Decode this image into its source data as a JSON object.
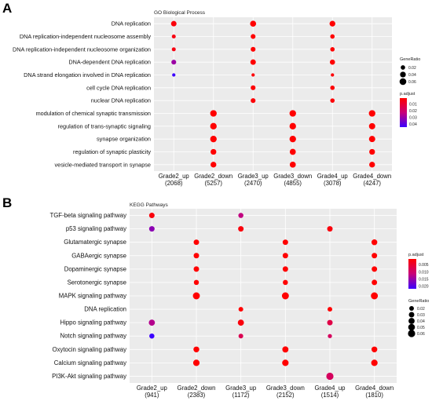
{
  "colors": {
    "high": "#ff0000",
    "low": "#3b00ff",
    "panel": "#ebebeb",
    "grid": "#ffffff"
  },
  "chart_data": [
    {
      "panel_label": "A",
      "type": "scatter",
      "title": "GO Biological Process",
      "categories": [
        "Grade2_up",
        "Grade2_down",
        "Grade3_up",
        "Grade3_down",
        "Grade4_up",
        "Grade4_down"
      ],
      "category_counts": [
        "(2068)",
        "(5257)",
        "(2470)",
        "(4855)",
        "(3078)",
        "(4247)"
      ],
      "terms": [
        "DNA replication",
        "DNA replication-independent nucleosome assembly",
        "DNA replication-independent nucleosome organization",
        "DNA-dependent DNA replication",
        "DNA strand elongation involved in DNA replication",
        "cell cycle DNA replication",
        "nuclear DNA replication",
        "modulation of chemical synaptic transmission",
        "regulation of trans-synaptic signaling",
        "synapse organization",
        "regulation of synaptic plasticity",
        "vesicle-mediated transport in synapse"
      ],
      "points": [
        {
          "cat": 0,
          "term": 0,
          "ratio": 0.035,
          "padj": 0.003
        },
        {
          "cat": 0,
          "term": 1,
          "ratio": 0.015,
          "padj": 0.004
        },
        {
          "cat": 0,
          "term": 2,
          "ratio": 0.015,
          "padj": 0.004
        },
        {
          "cat": 0,
          "term": 3,
          "ratio": 0.025,
          "padj": 0.03
        },
        {
          "cat": 0,
          "term": 4,
          "ratio": 0.01,
          "padj": 0.045
        },
        {
          "cat": 1,
          "term": 7,
          "ratio": 0.055,
          "padj": 0.001
        },
        {
          "cat": 1,
          "term": 8,
          "ratio": 0.055,
          "padj": 0.001
        },
        {
          "cat": 1,
          "term": 9,
          "ratio": 0.055,
          "padj": 0.001
        },
        {
          "cat": 1,
          "term": 10,
          "ratio": 0.04,
          "padj": 0.001
        },
        {
          "cat": 1,
          "term": 11,
          "ratio": 0.04,
          "padj": 0.001
        },
        {
          "cat": 2,
          "term": 0,
          "ratio": 0.045,
          "padj": 0.001
        },
        {
          "cat": 2,
          "term": 1,
          "ratio": 0.025,
          "padj": 0.001
        },
        {
          "cat": 2,
          "term": 2,
          "ratio": 0.025,
          "padj": 0.001
        },
        {
          "cat": 2,
          "term": 3,
          "ratio": 0.035,
          "padj": 0.001
        },
        {
          "cat": 2,
          "term": 4,
          "ratio": 0.01,
          "padj": 0.002
        },
        {
          "cat": 2,
          "term": 5,
          "ratio": 0.025,
          "padj": 0.002
        },
        {
          "cat": 2,
          "term": 6,
          "ratio": 0.025,
          "padj": 0.002
        },
        {
          "cat": 3,
          "term": 7,
          "ratio": 0.055,
          "padj": 0.001
        },
        {
          "cat": 3,
          "term": 8,
          "ratio": 0.055,
          "padj": 0.001
        },
        {
          "cat": 3,
          "term": 9,
          "ratio": 0.055,
          "padj": 0.001
        },
        {
          "cat": 3,
          "term": 10,
          "ratio": 0.045,
          "padj": 0.001
        },
        {
          "cat": 3,
          "term": 11,
          "ratio": 0.045,
          "padj": 0.001
        },
        {
          "cat": 4,
          "term": 0,
          "ratio": 0.04,
          "padj": 0.001
        },
        {
          "cat": 4,
          "term": 1,
          "ratio": 0.02,
          "padj": 0.001
        },
        {
          "cat": 4,
          "term": 2,
          "ratio": 0.02,
          "padj": 0.001
        },
        {
          "cat": 4,
          "term": 3,
          "ratio": 0.03,
          "padj": 0.001
        },
        {
          "cat": 4,
          "term": 4,
          "ratio": 0.01,
          "padj": 0.002
        },
        {
          "cat": 4,
          "term": 5,
          "ratio": 0.02,
          "padj": 0.002
        },
        {
          "cat": 4,
          "term": 6,
          "ratio": 0.02,
          "padj": 0.002
        },
        {
          "cat": 5,
          "term": 7,
          "ratio": 0.055,
          "padj": 0.001
        },
        {
          "cat": 5,
          "term": 8,
          "ratio": 0.05,
          "padj": 0.001
        },
        {
          "cat": 5,
          "term": 9,
          "ratio": 0.05,
          "padj": 0.001
        },
        {
          "cat": 5,
          "term": 10,
          "ratio": 0.04,
          "padj": 0.001
        },
        {
          "cat": 5,
          "term": 11,
          "ratio": 0.04,
          "padj": 0.001
        }
      ],
      "size_legend": {
        "title": "GeneRatio",
        "values": [
          0.02,
          0.04,
          0.06
        ],
        "labels": [
          "0.02",
          "0.04",
          "0.06"
        ]
      },
      "color_legend": {
        "title": "p.adjust",
        "range": [
          0.001,
          0.045
        ],
        "ticks": [
          0.01,
          0.02,
          0.03,
          0.04
        ],
        "labels": [
          "0.01",
          "0.02",
          "0.03",
          "0.04"
        ]
      },
      "ratio_range": [
        0.005,
        0.06
      ]
    },
    {
      "panel_label": "B",
      "type": "scatter",
      "title": "KEGG Pathways",
      "categories": [
        "Grade2_up",
        "Grade2_down",
        "Grade3_up",
        "Grade3_down",
        "Grade4_up",
        "Grade4_down"
      ],
      "category_counts": [
        "(941)",
        "(2383)",
        "(1172)",
        "(2152)",
        "(1514)",
        "(1810)"
      ],
      "terms": [
        "TGF-beta signaling pathway",
        "p53 signaling pathway",
        "Glutamatergic synapse",
        "GABAergic synapse",
        "Dopaminergic synapse",
        "Serotonergic synapse",
        "MAPK signaling pathway",
        "DNA replication",
        "Hippo signaling pathway",
        "Notch signaling pathway",
        "Oxytocin signaling pathway",
        "Calcium signaling pathway",
        "PI3K-Akt signaling pathway"
      ],
      "points": [
        {
          "cat": 0,
          "term": 0,
          "ratio": 0.03,
          "padj": 0.002
        },
        {
          "cat": 0,
          "term": 1,
          "ratio": 0.03,
          "padj": 0.016
        },
        {
          "cat": 0,
          "term": 8,
          "ratio": 0.04,
          "padj": 0.013
        },
        {
          "cat": 0,
          "term": 9,
          "ratio": 0.025,
          "padj": 0.022
        },
        {
          "cat": 1,
          "term": 2,
          "ratio": 0.03,
          "padj": 0.001
        },
        {
          "cat": 1,
          "term": 3,
          "ratio": 0.03,
          "padj": 0.001
        },
        {
          "cat": 1,
          "term": 4,
          "ratio": 0.03,
          "padj": 0.001
        },
        {
          "cat": 1,
          "term": 5,
          "ratio": 0.025,
          "padj": 0.001
        },
        {
          "cat": 1,
          "term": 6,
          "ratio": 0.055,
          "padj": 0.001
        },
        {
          "cat": 1,
          "term": 10,
          "ratio": 0.035,
          "padj": 0.001
        },
        {
          "cat": 1,
          "term": 11,
          "ratio": 0.045,
          "padj": 0.001
        },
        {
          "cat": 2,
          "term": 0,
          "ratio": 0.025,
          "padj": 0.012
        },
        {
          "cat": 2,
          "term": 1,
          "ratio": 0.03,
          "padj": 0.002
        },
        {
          "cat": 2,
          "term": 7,
          "ratio": 0.02,
          "padj": 0.001
        },
        {
          "cat": 2,
          "term": 8,
          "ratio": 0.04,
          "padj": 0.002
        },
        {
          "cat": 2,
          "term": 9,
          "ratio": 0.02,
          "padj": 0.008
        },
        {
          "cat": 3,
          "term": 2,
          "ratio": 0.03,
          "padj": 0.001
        },
        {
          "cat": 3,
          "term": 3,
          "ratio": 0.03,
          "padj": 0.001
        },
        {
          "cat": 3,
          "term": 4,
          "ratio": 0.03,
          "padj": 0.001
        },
        {
          "cat": 3,
          "term": 5,
          "ratio": 0.025,
          "padj": 0.001
        },
        {
          "cat": 3,
          "term": 6,
          "ratio": 0.055,
          "padj": 0.001
        },
        {
          "cat": 3,
          "term": 10,
          "ratio": 0.04,
          "padj": 0.001
        },
        {
          "cat": 3,
          "term": 11,
          "ratio": 0.045,
          "padj": 0.001
        },
        {
          "cat": 4,
          "term": 1,
          "ratio": 0.03,
          "padj": 0.002
        },
        {
          "cat": 4,
          "term": 7,
          "ratio": 0.02,
          "padj": 0.001
        },
        {
          "cat": 4,
          "term": 8,
          "ratio": 0.03,
          "padj": 0.007
        },
        {
          "cat": 4,
          "term": 9,
          "ratio": 0.015,
          "padj": 0.009
        },
        {
          "cat": 4,
          "term": 12,
          "ratio": 0.06,
          "padj": 0.009
        },
        {
          "cat": 5,
          "term": 2,
          "ratio": 0.035,
          "padj": 0.001
        },
        {
          "cat": 5,
          "term": 3,
          "ratio": 0.03,
          "padj": 0.001
        },
        {
          "cat": 5,
          "term": 4,
          "ratio": 0.03,
          "padj": 0.001
        },
        {
          "cat": 5,
          "term": 5,
          "ratio": 0.03,
          "padj": 0.001
        },
        {
          "cat": 5,
          "term": 6,
          "ratio": 0.055,
          "padj": 0.001
        },
        {
          "cat": 5,
          "term": 10,
          "ratio": 0.035,
          "padj": 0.001
        },
        {
          "cat": 5,
          "term": 11,
          "ratio": 0.045,
          "padj": 0.001
        }
      ],
      "color_legend": {
        "title": "p.adjust",
        "range": [
          0.001,
          0.022
        ],
        "ticks": [
          0.005,
          0.01,
          0.015,
          0.02
        ],
        "labels": [
          "0.005",
          "0.010",
          "0.015",
          "0.020"
        ]
      },
      "size_legend": {
        "title": "GeneRatio",
        "values": [
          0.02,
          0.03,
          0.04,
          0.05,
          0.06
        ],
        "labels": [
          "0.02",
          "0.03",
          "0.04",
          "0.05",
          "0.06"
        ]
      },
      "ratio_range": [
        0.005,
        0.06
      ]
    }
  ]
}
